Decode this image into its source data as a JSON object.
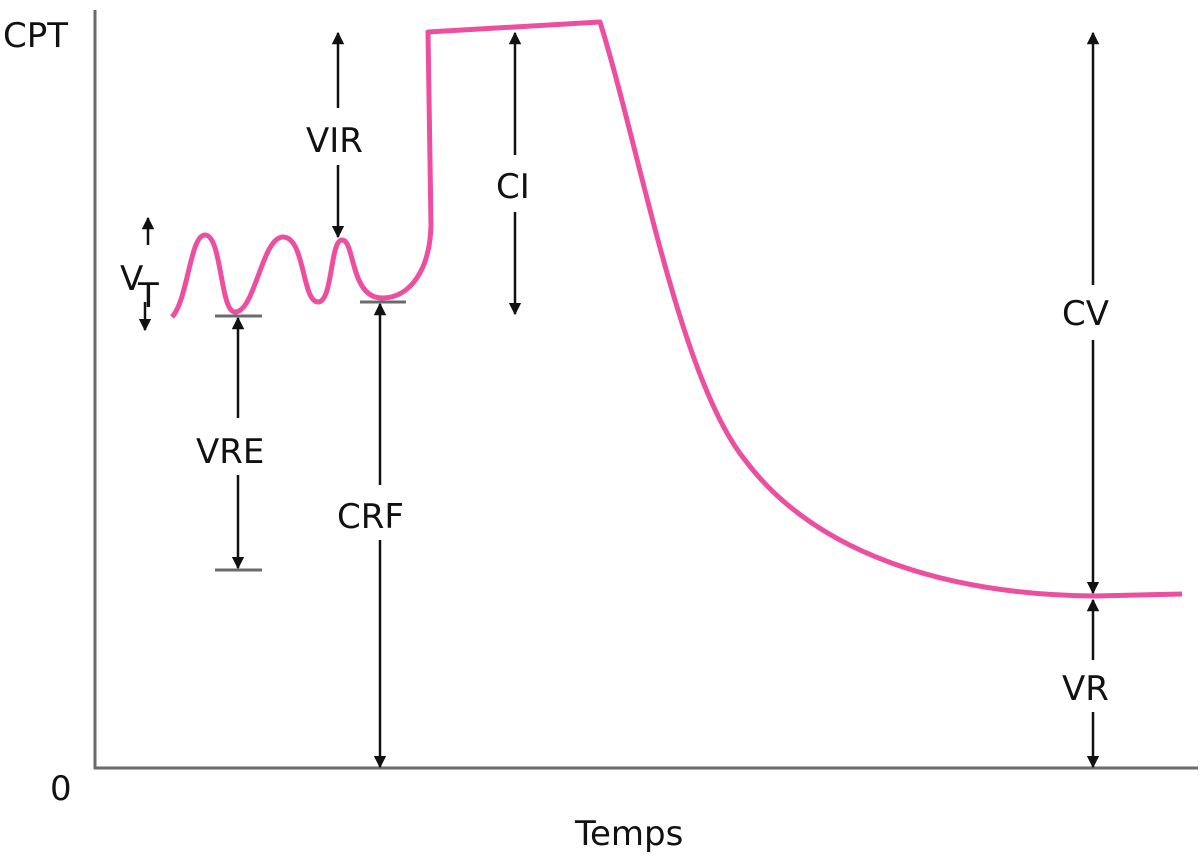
{
  "axes": {
    "y_label": "CPT",
    "y_zero": "0",
    "x_label": "Temps"
  },
  "labels": {
    "vt_main": "V",
    "vt_sub": "T",
    "vir": "VIR",
    "ci": "CI",
    "vre": "VRE",
    "crf": "CRF",
    "cv": "CV",
    "vr": "VR"
  },
  "colors": {
    "curve": "#EC4FA0",
    "axis": "#6b6b6b",
    "arrow": "#111111"
  }
}
